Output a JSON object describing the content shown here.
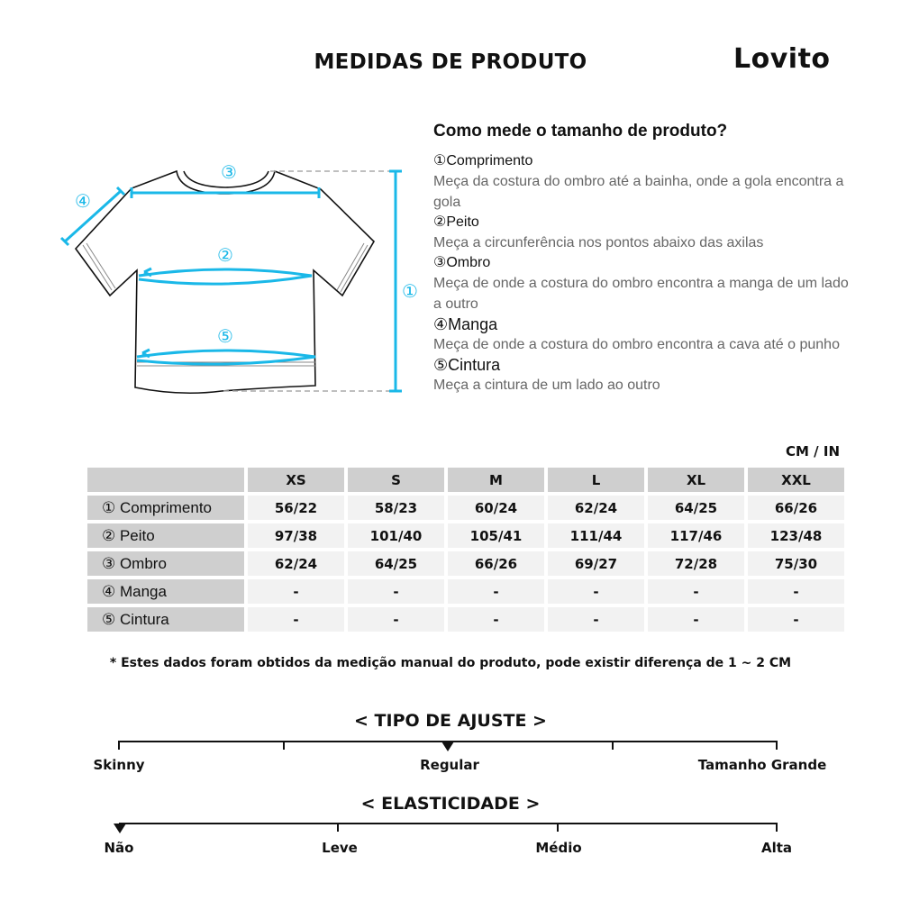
{
  "header": {
    "title": "MEDIDAS DE PRODUTO",
    "logo": "Lovito"
  },
  "guide": {
    "question": "Como mede o tamanho de produto?",
    "items": [
      {
        "title": "①Comprimento",
        "desc": "Meça da costura do ombro até a bainha, onde a gola encontra a gola"
      },
      {
        "title": "②Peito",
        "desc": "Meça a circunferência nos pontos abaixo das axilas"
      },
      {
        "title": "③Ombro",
        "desc": "Meça de onde a costura do ombro encontra a manga de um lado a outro"
      },
      {
        "title": "④Manga",
        "desc": "Meça de onde a costura do ombro encontra a cava até o punho"
      },
      {
        "title": "⑤Cintura",
        "desc": "Meça a cintura de um lado ao outro"
      }
    ],
    "diagram_markers": [
      "①",
      "②",
      "③",
      "④",
      "⑤"
    ],
    "accent_color": "#1ab8e8"
  },
  "table": {
    "unit": "CM / IN",
    "sizes": [
      "XS",
      "S",
      "M",
      "L",
      "XL",
      "XXL"
    ],
    "rows": [
      {
        "label": "① Comprimento",
        "values": [
          "56/22",
          "58/23",
          "60/24",
          "62/24",
          "64/25",
          "66/26"
        ]
      },
      {
        "label": "② Peito",
        "values": [
          "97/38",
          "101/40",
          "105/41",
          "111/44",
          "117/46",
          "123/48"
        ]
      },
      {
        "label": "③ Ombro",
        "values": [
          "62/24",
          "64/25",
          "66/26",
          "69/27",
          "72/28",
          "75/30"
        ]
      },
      {
        "label": "④ Manga",
        "values": [
          "-",
          "-",
          "-",
          "-",
          "-",
          "-"
        ]
      },
      {
        "label": "⑤ Cintura",
        "values": [
          "-",
          "-",
          "-",
          "-",
          "-",
          "-"
        ]
      }
    ]
  },
  "note": "* Estes dados foram obtidos da medição manual do produto, pode existir diferença de 1 ~ 2 CM",
  "fit": {
    "title": "< TIPO DE AJUSTE >",
    "labels": [
      "Skinny",
      "Regular",
      "Tamanho Grande"
    ],
    "selected": "Regular"
  },
  "elasticity": {
    "title": "< ELASTICIDADE >",
    "labels": [
      "Não",
      "Leve",
      "Médio",
      "Alta"
    ],
    "selected": "Não"
  }
}
